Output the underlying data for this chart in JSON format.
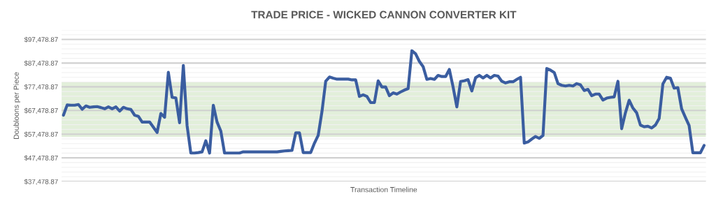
{
  "chart_data": {
    "type": "line",
    "title": "TRADE PRICE - WICKED CANNON CONVERTER KIT",
    "xlabel": "Transaction Timeline",
    "ylabel": "Doubloons per Piece",
    "categories": [
      null,
      null,
      null,
      null,
      null,
      null,
      null,
      null,
      null,
      null,
      null,
      null,
      null,
      null,
      null,
      null,
      null,
      null,
      null,
      null,
      null,
      null,
      null,
      null,
      null,
      null,
      null,
      null,
      null,
      null,
      null,
      null,
      null,
      null,
      null,
      null,
      null,
      null,
      null,
      null,
      null,
      null,
      null,
      null,
      null,
      null,
      null,
      null,
      null,
      null,
      null,
      null,
      null,
      null,
      null,
      null,
      null,
      null,
      null,
      null,
      null,
      null,
      null,
      null,
      null,
      null,
      null,
      null,
      null,
      null,
      null,
      null,
      null,
      null,
      null,
      null,
      null,
      null,
      null,
      null,
      null,
      null,
      null,
      null,
      null,
      null,
      null,
      null,
      null,
      null,
      null,
      null,
      null,
      null,
      null,
      null,
      null,
      null,
      null,
      null,
      null,
      null,
      null,
      null,
      null,
      null,
      null,
      null,
      null,
      null,
      null,
      null,
      null,
      null,
      null,
      null,
      null,
      null,
      null,
      null,
      null,
      null,
      null,
      null,
      null,
      null,
      null,
      null,
      null,
      null,
      null,
      null,
      null,
      null,
      null,
      null,
      null,
      null,
      null,
      null,
      null,
      null,
      null,
      null,
      null,
      null,
      null,
      null,
      null,
      null,
      null,
      null,
      null,
      null,
      null,
      null,
      null,
      null,
      null,
      null,
      null,
      null,
      null,
      null,
      null,
      null,
      null,
      null,
      null,
      null,
      null,
      null
    ],
    "series": [
      {
        "color": "#3a5da0",
        "values": [
          65500,
          69800,
          69700,
          69700,
          70000,
          68000,
          69400,
          68800,
          69000,
          69100,
          68700,
          68200,
          69000,
          68200,
          69000,
          67200,
          68800,
          68200,
          67900,
          65500,
          65000,
          62600,
          62600,
          62600,
          60400,
          58200,
          66200,
          64600,
          83600,
          73000,
          72800,
          62300,
          86500,
          61100,
          49500,
          49500,
          49700,
          50000,
          54700,
          49500,
          69700,
          62600,
          58800,
          49500,
          49500,
          49500,
          49500,
          49500,
          50000,
          50000,
          50000,
          50000,
          50000,
          50000,
          50000,
          50000,
          50000,
          50000,
          50200,
          50400,
          50500,
          50600,
          58000,
          58000,
          49700,
          49700,
          49700,
          53700,
          57000,
          67000,
          79800,
          81600,
          81100,
          80700,
          80700,
          80700,
          80700,
          80400,
          80400,
          73400,
          74100,
          73400,
          70800,
          70800,
          80000,
          77400,
          77400,
          73700,
          74900,
          74400,
          75300,
          76100,
          76700,
          92700,
          91400,
          88200,
          86000,
          80600,
          81000,
          80600,
          82300,
          81800,
          81800,
          84800,
          77400,
          69000,
          79700,
          80000,
          80500,
          75700,
          81300,
          82300,
          81200,
          82300,
          81200,
          82300,
          82000,
          79800,
          79100,
          79600,
          79600,
          80600,
          81500,
          53700,
          54200,
          55400,
          56500,
          55700,
          56900,
          85200,
          84500,
          83500,
          78800,
          78100,
          77800,
          78100,
          77800,
          78800,
          78300,
          75900,
          76400,
          73700,
          74400,
          74400,
          71900,
          72700,
          73000,
          73200,
          79800,
          59800,
          66500,
          71800,
          68500,
          66500,
          61300,
          60600,
          60800,
          60100,
          61300,
          64100,
          78700,
          81500,
          81100,
          76900,
          77100,
          68200,
          64600,
          61100,
          49600,
          49600,
          49600,
          52700
        ]
      }
    ],
    "ylim": [
      37478.87,
      101478.87
    ],
    "yticks": [
      {
        "value": 37478.87,
        "label": "$37,478.87"
      },
      {
        "value": 39478.87,
        "label": null
      },
      {
        "value": 41478.87,
        "label": null
      },
      {
        "value": 43478.87,
        "label": null
      },
      {
        "value": 45478.87,
        "label": null
      },
      {
        "value": 47478.87,
        "label": "$47,478.87"
      },
      {
        "value": 49478.87,
        "label": null
      },
      {
        "value": 51478.87,
        "label": null
      },
      {
        "value": 53478.87,
        "label": null
      },
      {
        "value": 55478.87,
        "label": null
      },
      {
        "value": 57478.87,
        "label": "$57,478.87"
      },
      {
        "value": 59478.87,
        "label": null
      },
      {
        "value": 61478.87,
        "label": null
      },
      {
        "value": 63478.87,
        "label": null
      },
      {
        "value": 65478.87,
        "label": null
      },
      {
        "value": 67478.87,
        "label": "$67,478.87"
      },
      {
        "value": 69478.87,
        "label": null
      },
      {
        "value": 71478.87,
        "label": null
      },
      {
        "value": 73478.87,
        "label": null
      },
      {
        "value": 75478.87,
        "label": null
      },
      {
        "value": 77478.87,
        "label": "$77,478.87"
      },
      {
        "value": 79478.87,
        "label": null
      },
      {
        "value": 81478.87,
        "label": null
      },
      {
        "value": 83478.87,
        "label": null
      },
      {
        "value": 85478.87,
        "label": null
      },
      {
        "value": 87478.87,
        "label": "$87,478.87"
      },
      {
        "value": 89478.87,
        "label": null
      },
      {
        "value": 91478.87,
        "label": null
      },
      {
        "value": 93478.87,
        "label": null
      },
      {
        "value": 95478.87,
        "label": null
      },
      {
        "value": 97478.87,
        "label": "$97,478.87"
      },
      {
        "value": 99478.87,
        "label": null
      },
      {
        "value": 101478.87,
        "label": null
      }
    ],
    "bands": [
      {
        "axis": "y",
        "from": 56300,
        "to": 79600,
        "color": "#e2efda"
      }
    ],
    "grid": "y",
    "legend": false,
    "marker": "none",
    "line_style": "solid"
  }
}
